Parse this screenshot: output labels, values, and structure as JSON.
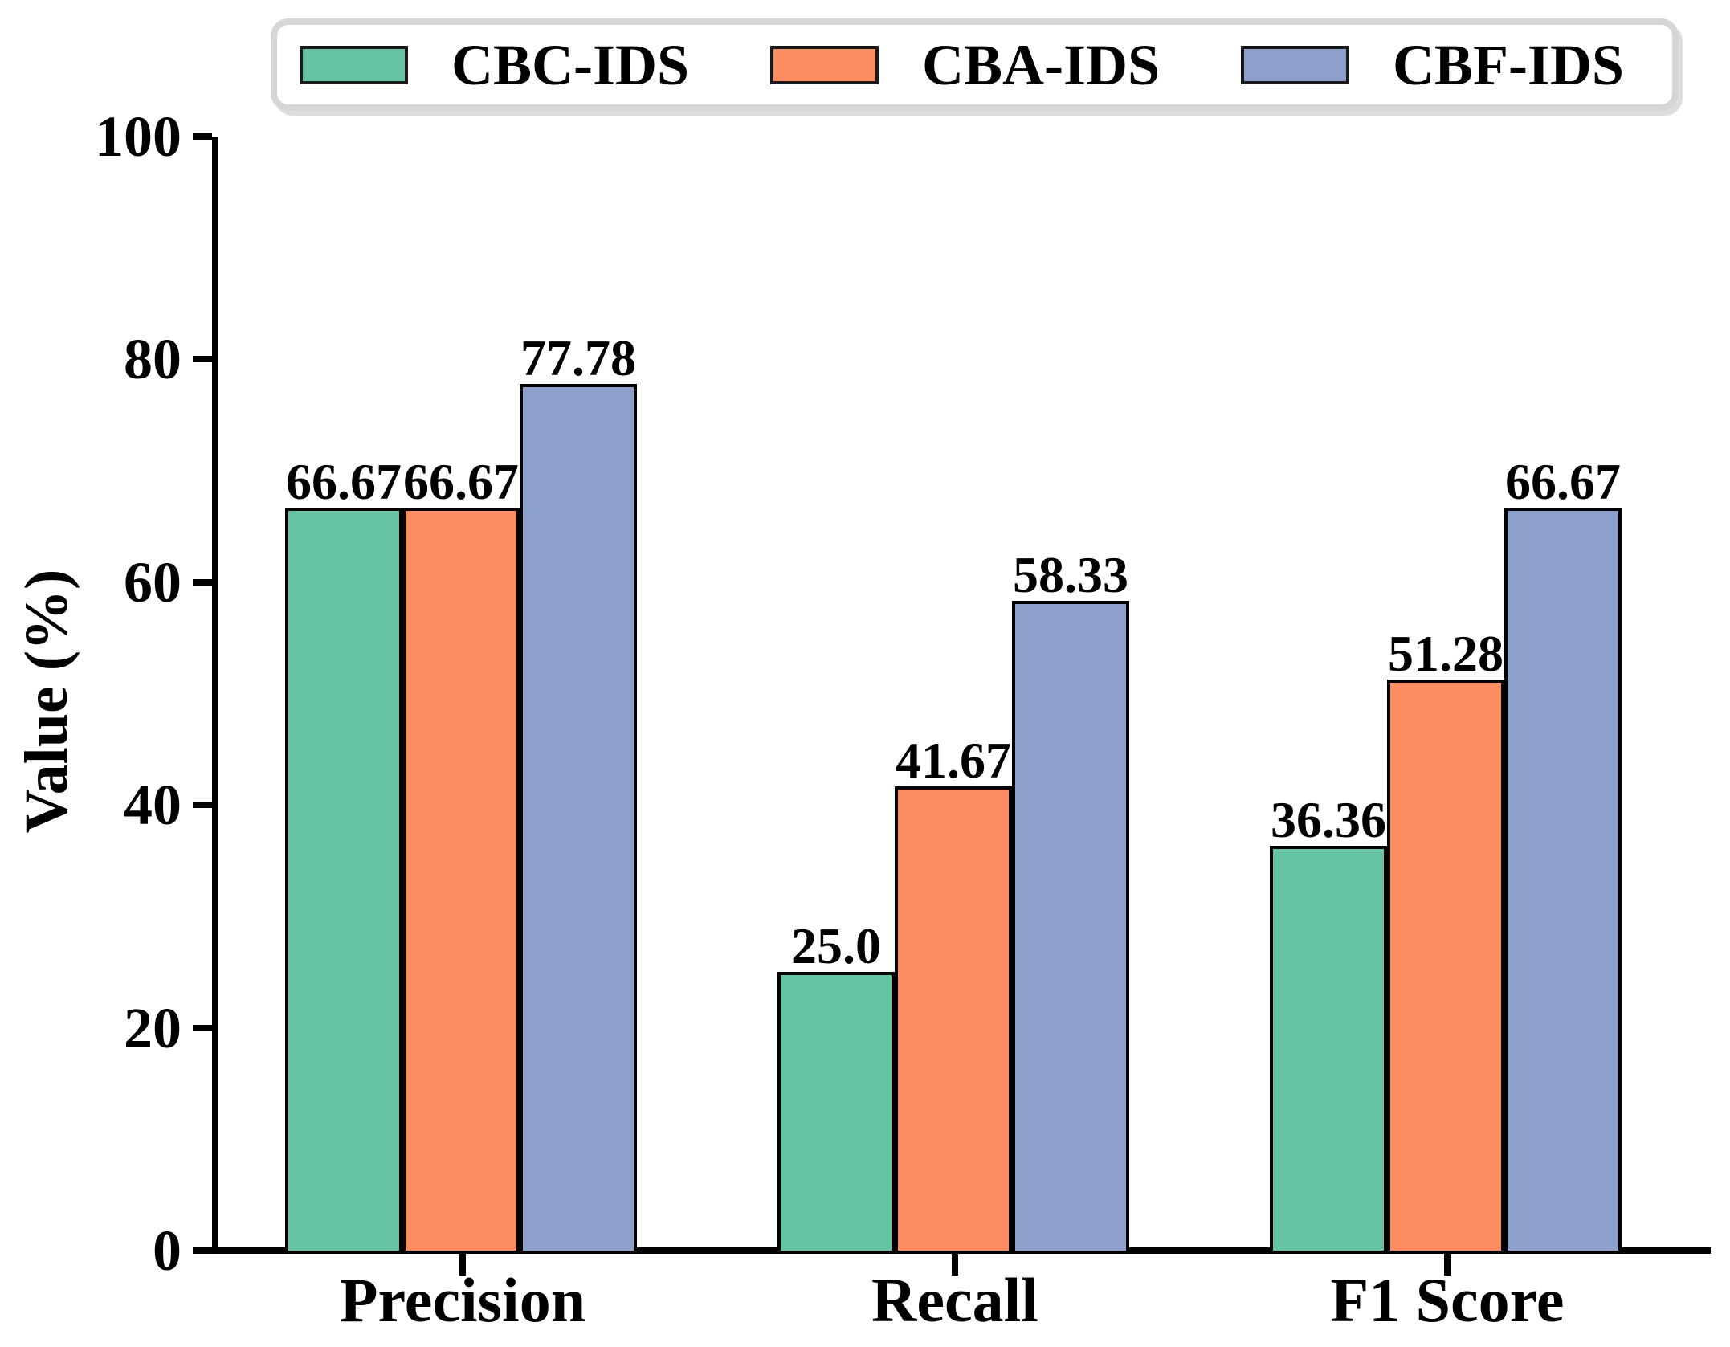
{
  "chart_data": {
    "type": "bar",
    "title": "",
    "ylabel": "Value (%)",
    "xlabel": "",
    "ylim": [
      0,
      100
    ],
    "yticks": [
      0,
      20,
      40,
      60,
      80,
      100
    ],
    "grid": false,
    "legend_position": "top",
    "categories": [
      "Precision",
      "Recall",
      "F1 Score"
    ],
    "series": [
      {
        "name": "CBC-IDS",
        "color": "#66C2A5",
        "values": [
          66.67,
          25.0,
          36.36
        ],
        "display": [
          "66.67",
          "25.0",
          "36.36"
        ]
      },
      {
        "name": "CBA-IDS",
        "color": "#FC8D62",
        "values": [
          66.67,
          41.67,
          51.28
        ],
        "display": [
          "66.67",
          "41.67",
          "51.28"
        ]
      },
      {
        "name": "CBF-IDS",
        "color": "#8DA0CB",
        "values": [
          77.78,
          58.33,
          66.67
        ],
        "display": [
          "77.78",
          "58.33",
          "66.67"
        ]
      }
    ],
    "style_colors": {
      "bar_edge": "#000000",
      "axis": "#000000",
      "text": "#000000",
      "legend_border": "#d6d6d6",
      "background": "#ffffff"
    }
  }
}
